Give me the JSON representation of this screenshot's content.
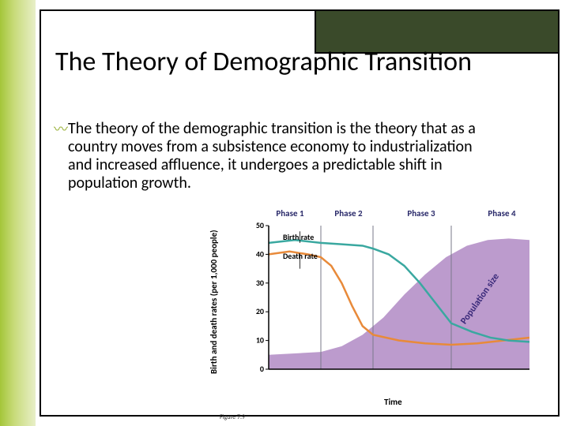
{
  "title": "The Theory of Demographic Transition",
  "body": "The theory of the demographic transition is the theory that as a country moves from a subsistence economy to industrialization and increased affluence, it undergoes a predictable shift in population growth.",
  "chart": {
    "type": "line",
    "ylabel": "Birth and death rates (per 1,000 people)",
    "xlabel": "Time",
    "phases": [
      "Phase 1",
      "Phase 2",
      "Phase 3",
      "Phase 4"
    ],
    "phase_boundaries_pct": [
      0,
      20,
      40,
      70,
      100
    ],
    "ylim": [
      0,
      50
    ],
    "yticks": [
      0,
      10,
      20,
      30,
      40,
      50
    ],
    "background_color": "#ffffff",
    "phase_divider_color": "#7a7a8a",
    "birth_rate": {
      "label": "Birth rate",
      "color": "#3aa8a0",
      "stroke_width": 2.5,
      "points": [
        [
          0,
          44
        ],
        [
          10,
          45
        ],
        [
          20,
          44
        ],
        [
          28,
          43.5
        ],
        [
          36,
          43
        ],
        [
          40,
          42
        ],
        [
          46,
          40
        ],
        [
          52,
          36
        ],
        [
          58,
          30
        ],
        [
          64,
          23
        ],
        [
          70,
          16
        ],
        [
          78,
          13
        ],
        [
          85,
          11
        ],
        [
          92,
          10
        ],
        [
          100,
          9.5
        ]
      ]
    },
    "death_rate": {
      "label": "Death rate",
      "color": "#e88a3a",
      "stroke_width": 2.5,
      "points": [
        [
          0,
          40
        ],
        [
          8,
          41
        ],
        [
          15,
          40
        ],
        [
          20,
          39
        ],
        [
          24,
          36
        ],
        [
          28,
          30
        ],
        [
          32,
          22
        ],
        [
          36,
          15
        ],
        [
          40,
          12
        ],
        [
          50,
          10
        ],
        [
          60,
          9
        ],
        [
          70,
          8.5
        ],
        [
          80,
          9
        ],
        [
          90,
          10
        ],
        [
          100,
          11
        ]
      ]
    },
    "population": {
      "label": "Population size",
      "fill_color": "#b08ac4",
      "opacity": 0.85,
      "points": [
        [
          0,
          5
        ],
        [
          10,
          5.5
        ],
        [
          20,
          6
        ],
        [
          28,
          8
        ],
        [
          36,
          12
        ],
        [
          44,
          18
        ],
        [
          52,
          26
        ],
        [
          60,
          33
        ],
        [
          68,
          39
        ],
        [
          76,
          43
        ],
        [
          84,
          45
        ],
        [
          92,
          45.5
        ],
        [
          100,
          45
        ]
      ]
    },
    "figure_caption": "Figure 7.9",
    "axis_color": "#000000",
    "tick_fontsize": 10
  }
}
